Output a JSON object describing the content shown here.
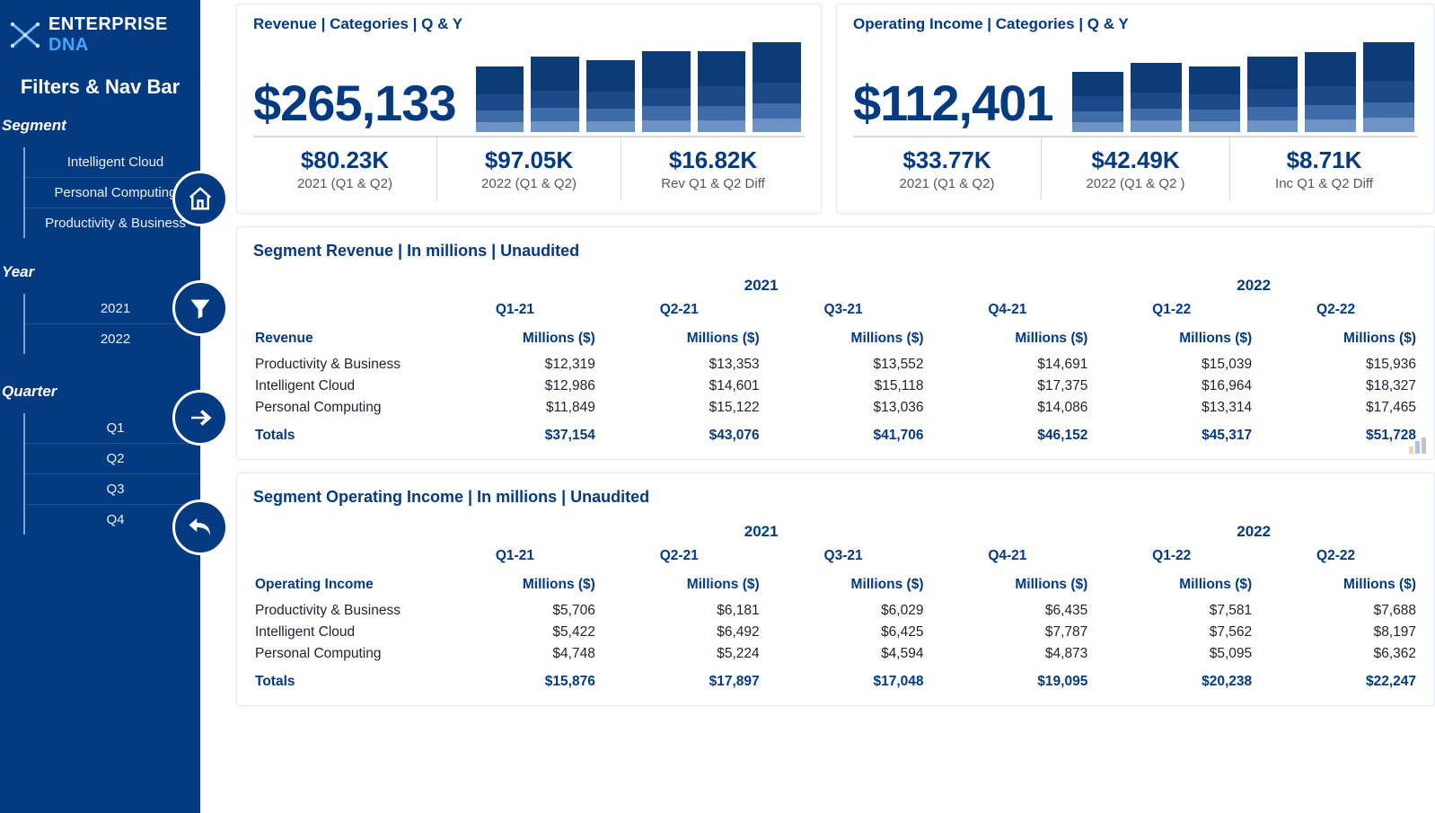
{
  "brand": {
    "word1": "ENTERPRISE",
    "word2": "DNA"
  },
  "sidebar": {
    "title": "Filters & Nav Bar",
    "groups": [
      {
        "head": "Segment",
        "items": [
          "Intelligent Cloud",
          "Personal Computing",
          "Productivity & Business"
        ]
      },
      {
        "head": "Year",
        "items": [
          "2021",
          "2022"
        ]
      },
      {
        "head": "Quarter",
        "items": [
          "Q1",
          "Q2",
          "Q3",
          "Q4"
        ]
      }
    ],
    "navButtons": [
      "home",
      "filter",
      "forward",
      "back"
    ]
  },
  "kpis": [
    {
      "title": "Revenue | Categories | Q & Y",
      "big_value": "$265,133",
      "chart": {
        "colors": [
          "#6d93c4",
          "#3f6ba7",
          "#1c4a88",
          "#0b3b77"
        ],
        "bars": [
          [
            12,
            15,
            20,
            35
          ],
          [
            14,
            16,
            22,
            42
          ],
          [
            13,
            16,
            21,
            40
          ],
          [
            15,
            17,
            23,
            46
          ],
          [
            15,
            18,
            24,
            44
          ],
          [
            17,
            19,
            26,
            50
          ]
        ]
      },
      "subs": [
        {
          "val": "$80.23K",
          "lbl": "2021 (Q1 & Q2)"
        },
        {
          "val": "$97.05K",
          "lbl": "2022 (Q1 & Q2)"
        },
        {
          "val": "$16.82K",
          "lbl": "Rev Q1 & Q2 Diff"
        }
      ]
    },
    {
      "title": "Operating Income | Categories | Q & Y",
      "big_value": "$112,401",
      "chart": {
        "colors": [
          "#6d93c4",
          "#3f6ba7",
          "#1c4a88",
          "#0b3b77"
        ],
        "bars": [
          [
            12,
            14,
            18,
            30
          ],
          [
            14,
            15,
            20,
            36
          ],
          [
            13,
            15,
            19,
            34
          ],
          [
            15,
            16,
            22,
            40
          ],
          [
            16,
            17,
            24,
            42
          ],
          [
            18,
            19,
            26,
            48
          ]
        ]
      },
      "subs": [
        {
          "val": "$33.77K",
          "lbl": "2021 (Q1 & Q2)"
        },
        {
          "val": "$42.49K",
          "lbl": "2022 (Q1 & Q2 )"
        },
        {
          "val": "$8.71K",
          "lbl": "Inc Q1 & Q2 Diff"
        }
      ]
    }
  ],
  "tables": [
    {
      "title": "Segment Revenue | In millions |  Unaudited",
      "years": [
        "2021",
        "2022"
      ],
      "periods": [
        "Q1-21",
        "Q2-21",
        "Q3-21",
        "Q4-21",
        "Q1-22",
        "Q2-22"
      ],
      "unit": "Millions ($)",
      "rowHead": "Revenue",
      "rows": [
        {
          "name": "Productivity & Business",
          "vals": [
            "$12,319",
            "$13,353",
            "$13,552",
            "$14,691",
            "$15,039",
            "$15,936"
          ]
        },
        {
          "name": "Intelligent Cloud",
          "vals": [
            "$12,986",
            "$14,601",
            "$15,118",
            "$17,375",
            "$16,964",
            "$18,327"
          ]
        },
        {
          "name": "Personal Computing",
          "vals": [
            "$11,849",
            "$15,122",
            "$13,036",
            "$14,086",
            "$13,314",
            "$17,465"
          ]
        }
      ],
      "totals": {
        "name": "Totals",
        "vals": [
          "$37,154",
          "$43,076",
          "$41,706",
          "$46,152",
          "$45,317",
          "$51,728"
        ]
      },
      "flagIcon": true
    },
    {
      "title": "Segment Operating Income | In millions |  Unaudited",
      "years": [
        "2021",
        "2022"
      ],
      "periods": [
        "Q1-21",
        "Q2-21",
        "Q3-21",
        "Q4-21",
        "Q1-22",
        "Q2-22"
      ],
      "unit": "Millions ($)",
      "rowHead": "Operating Income",
      "rows": [
        {
          "name": "Productivity & Business",
          "vals": [
            "$5,706",
            "$6,181",
            "$6,029",
            "$6,435",
            "$7,581",
            "$7,688"
          ]
        },
        {
          "name": "Intelligent Cloud",
          "vals": [
            "$5,422",
            "$6,492",
            "$6,425",
            "$7,787",
            "$7,562",
            "$8,197"
          ]
        },
        {
          "name": "Personal Computing",
          "vals": [
            "$4,748",
            "$5,224",
            "$4,594",
            "$4,873",
            "$5,095",
            "$6,362"
          ]
        }
      ],
      "totals": {
        "name": "Totals",
        "vals": [
          "$15,876",
          "$17,897",
          "$17,048",
          "$19,095",
          "$20,238",
          "$22,247"
        ]
      }
    }
  ]
}
